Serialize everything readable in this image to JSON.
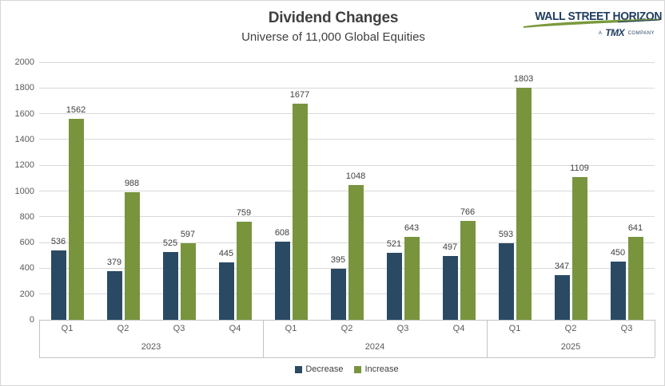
{
  "header": {
    "title": "Dividend Changes",
    "subtitle": "Universe of 11,000 Global Equities"
  },
  "logo": {
    "brand": "WALL STREET HORIZON",
    "tagline_prefix": "A",
    "tagline_brand": "TMX",
    "tagline_suffix": "COMPANY",
    "brand_color": "#1e3c5f",
    "swoosh_color": "#7a9a3d"
  },
  "chart_data": {
    "type": "bar",
    "title": "Dividend Changes",
    "subtitle": "Universe of 11,000 Global Equities",
    "ylim": [
      0,
      2000
    ],
    "yticks": [
      0,
      200,
      400,
      600,
      800,
      1000,
      1200,
      1400,
      1600,
      1800,
      2000
    ],
    "grid": true,
    "legend_position": "bottom",
    "year_groups": [
      {
        "label": "2023",
        "categories": [
          "Q1",
          "Q2",
          "Q3",
          "Q4"
        ]
      },
      {
        "label": "2024",
        "categories": [
          "Q1",
          "Q2",
          "Q3",
          "Q4"
        ]
      },
      {
        "label": "2025",
        "categories": [
          "Q1",
          "Q2",
          "Q3"
        ]
      }
    ],
    "series": [
      {
        "name": "Decrease",
        "color": "#2a4a63",
        "values": [
          536,
          379,
          525,
          445,
          608,
          395,
          521,
          497,
          593,
          347,
          450
        ]
      },
      {
        "name": "Increase",
        "color": "#78953e",
        "values": [
          1562,
          988,
          597,
          759,
          1677,
          1048,
          643,
          766,
          1803,
          1109,
          641
        ]
      }
    ],
    "value_labels": true
  },
  "colors": {
    "gridline": "#d9d9d9",
    "axis": "#c3c3c3",
    "tick_text": "#595959",
    "label_text": "#404040"
  }
}
